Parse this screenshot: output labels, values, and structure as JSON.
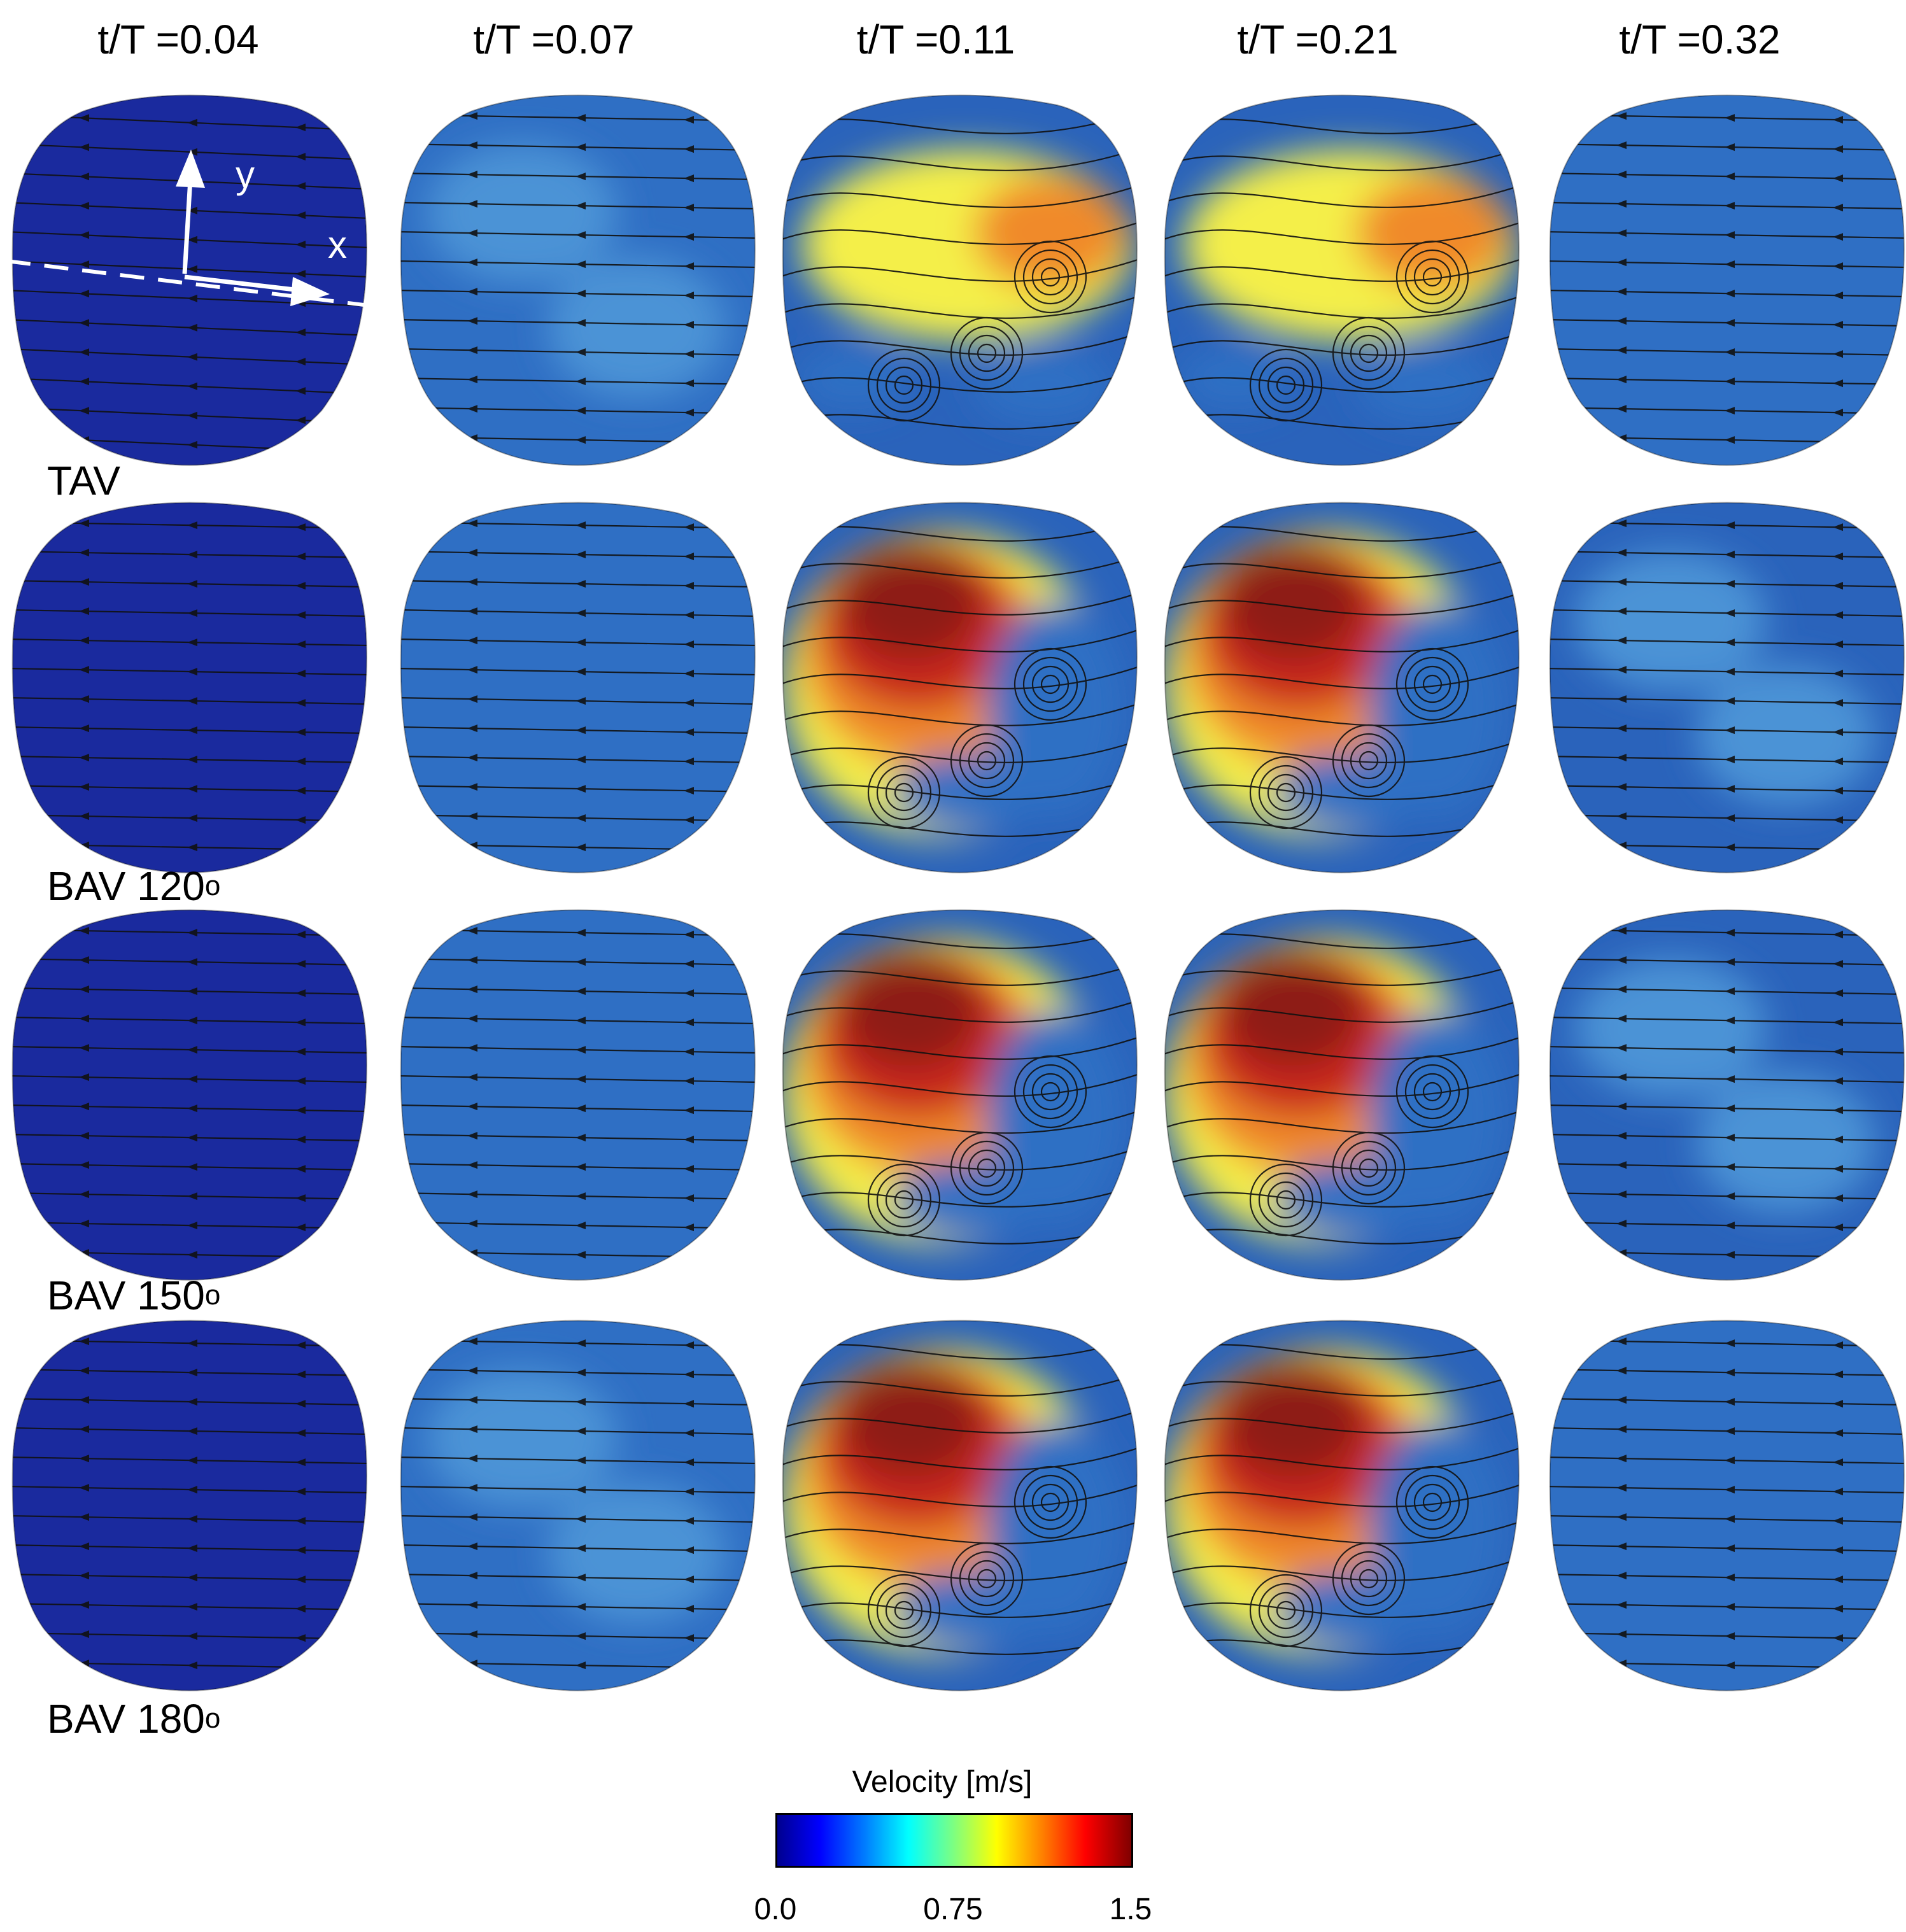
{
  "column_titles": [
    "t/T =0.04",
    "t/T =0.07",
    "t/T =0.11",
    "t/T =0.21",
    "t/T =0.32"
  ],
  "row_labels": [
    {
      "text": "TAV",
      "superscript": ""
    },
    {
      "text": "BAV 120",
      "superscript": "o"
    },
    {
      "text": "BAV 150",
      "superscript": "o"
    },
    {
      "text": "BAV 180",
      "superscript": "o"
    }
  ],
  "axes": {
    "y_label": "y",
    "x_label": "x"
  },
  "colorbar": {
    "title": "Velocity [m/s]",
    "min_label": "0.0",
    "mid_label": "0.75",
    "max_label": "1.5",
    "range": [
      0.0,
      1.5
    ]
  },
  "colors": {
    "slow": "#1a2a9e",
    "low": "#2f6fc4",
    "mid": "#6fc6e6",
    "yellow": "#f4ef4a",
    "orange": "#f08a2c",
    "red": "#c8281e",
    "dark_red": "#8e1a12"
  },
  "panels": [
    {
      "row": 0,
      "col": 0,
      "peak": 0.05
    },
    {
      "row": 0,
      "col": 1,
      "peak": 0.25
    },
    {
      "row": 0,
      "col": 2,
      "peak": 0.95
    },
    {
      "row": 0,
      "col": 3,
      "peak": 0.9
    },
    {
      "row": 0,
      "col": 4,
      "peak": 0.15
    },
    {
      "row": 1,
      "col": 0,
      "peak": 0.03
    },
    {
      "row": 1,
      "col": 1,
      "peak": 0.2
    },
    {
      "row": 1,
      "col": 2,
      "peak": 1.4
    },
    {
      "row": 1,
      "col": 3,
      "peak": 1.5
    },
    {
      "row": 1,
      "col": 4,
      "peak": 0.35
    },
    {
      "row": 2,
      "col": 0,
      "peak": 0.03
    },
    {
      "row": 2,
      "col": 1,
      "peak": 0.2
    },
    {
      "row": 2,
      "col": 2,
      "peak": 1.4
    },
    {
      "row": 2,
      "col": 3,
      "peak": 1.5
    },
    {
      "row": 2,
      "col": 4,
      "peak": 0.3
    },
    {
      "row": 3,
      "col": 0,
      "peak": 0.05
    },
    {
      "row": 3,
      "col": 1,
      "peak": 0.25
    },
    {
      "row": 3,
      "col": 2,
      "peak": 1.4
    },
    {
      "row": 3,
      "col": 3,
      "peak": 1.3
    },
    {
      "row": 3,
      "col": 4,
      "peak": 0.2
    }
  ]
}
